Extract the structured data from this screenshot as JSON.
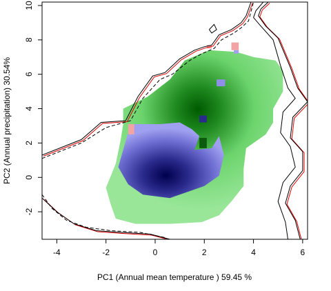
{
  "chart_data": {
    "type": "heatmap",
    "title": "",
    "xlabel": "PC1 (Annual mean temperature ) 59.45 %",
    "ylabel": "PC2 (Annual precipitation) 30.54%",
    "xlim": [
      -4.6,
      6.2
    ],
    "ylim": [
      -3.6,
      10.2
    ],
    "x_ticks": [
      -4,
      -2,
      0,
      2,
      4,
      6
    ],
    "y_ticks": [
      -2,
      0,
      2,
      4,
      6,
      8,
      10
    ],
    "grid": false,
    "legend": "none",
    "colors": {
      "green_range": "#99e699",
      "green_dense": "#005a00",
      "blue_range": "#a0a0f0",
      "blue_dense": "#00004e",
      "overlap_pink": "#f2a3a3",
      "contour_red": "#e00000",
      "contour_black": "#000000"
    },
    "series": [
      {
        "layer": "range-green",
        "polygon": [
          [
            -1.3,
            4.0
          ],
          [
            -0.3,
            4.7
          ],
          [
            0.6,
            5.7
          ],
          [
            1.2,
            6.8
          ],
          [
            2.2,
            7.4
          ],
          [
            3.3,
            7.3
          ],
          [
            4.0,
            7.0
          ],
          [
            4.9,
            6.8
          ],
          [
            5.2,
            6.2
          ],
          [
            5.2,
            5.0
          ],
          [
            4.8,
            4.0
          ],
          [
            4.8,
            3.2
          ],
          [
            4.5,
            2.5
          ],
          [
            3.7,
            1.7
          ],
          [
            3.6,
            0.5
          ],
          [
            3.6,
            -0.5
          ],
          [
            3.1,
            -1.4
          ],
          [
            2.6,
            -2.2
          ],
          [
            1.9,
            -2.6
          ],
          [
            0.6,
            -2.7
          ],
          [
            -0.8,
            -2.7
          ],
          [
            -1.6,
            -2.4
          ],
          [
            -1.8,
            -1.6
          ],
          [
            -2.0,
            -0.6
          ],
          [
            -1.6,
            0.8
          ],
          [
            -1.4,
            2.2
          ],
          [
            -1.3,
            3.1
          ]
        ]
      },
      {
        "layer": "range-blue",
        "polygon": [
          [
            -1.0,
            3.1
          ],
          [
            0.2,
            3.1
          ],
          [
            1.0,
            3.2
          ],
          [
            1.5,
            2.8
          ],
          [
            1.8,
            2.4
          ],
          [
            1.6,
            1.6
          ],
          [
            2.3,
            1.7
          ],
          [
            2.6,
            2.4
          ],
          [
            2.8,
            1.3
          ],
          [
            2.6,
            0.1
          ],
          [
            2.0,
            -0.5
          ],
          [
            1.2,
            -0.9
          ],
          [
            0.6,
            -1.2
          ],
          [
            -0.5,
            -1.0
          ],
          [
            -1.1,
            -0.4
          ],
          [
            -1.5,
            0.6
          ],
          [
            -1.3,
            1.6
          ]
        ]
      },
      {
        "layer": "contour-solid-black",
        "points": [
          [
            -4.6,
            1.3
          ],
          [
            -3.0,
            2.2
          ],
          [
            -2.2,
            3.2
          ],
          [
            -1.2,
            3.3
          ],
          [
            -0.7,
            4.7
          ],
          [
            -0.1,
            5.9
          ],
          [
            0.4,
            6.1
          ],
          [
            1.0,
            6.9
          ],
          [
            1.6,
            7.4
          ],
          [
            2.0,
            7.6
          ],
          [
            2.3,
            7.7
          ],
          [
            2.6,
            8.3
          ],
          [
            3.1,
            8.6
          ],
          [
            3.5,
            9.0
          ],
          [
            3.7,
            9.4
          ],
          [
            3.9,
            10.2
          ]
        ]
      },
      {
        "layer": "contour-dashed-black",
        "points": [
          [
            -4.6,
            1.1
          ],
          [
            -3.0,
            2.0
          ],
          [
            -2.0,
            2.9
          ],
          [
            -1.0,
            3.3
          ],
          [
            -0.5,
            4.6
          ],
          [
            0.2,
            5.7
          ],
          [
            0.7,
            6.0
          ],
          [
            1.4,
            6.8
          ],
          [
            1.9,
            7.2
          ],
          [
            2.4,
            7.5
          ],
          [
            2.7,
            8.0
          ],
          [
            3.2,
            8.4
          ],
          [
            3.5,
            8.7
          ],
          [
            3.8,
            9.1
          ],
          [
            4.0,
            10.2
          ]
        ]
      },
      {
        "layer": "contour-right-outer",
        "points": [
          [
            4.6,
            10.2
          ],
          [
            4.3,
            9.8
          ],
          [
            4.2,
            9.4
          ],
          [
            4.5,
            8.8
          ],
          [
            5.0,
            8.1
          ],
          [
            5.5,
            6.4
          ],
          [
            5.8,
            5.2
          ],
          [
            6.2,
            4.4
          ],
          [
            5.6,
            3.5
          ],
          [
            5.5,
            2.3
          ],
          [
            6.0,
            1.5
          ],
          [
            6.0,
            0.4
          ],
          [
            5.5,
            -0.5
          ],
          [
            5.3,
            -1.5
          ],
          [
            5.7,
            -2.5
          ],
          [
            5.9,
            -3.6
          ]
        ]
      },
      {
        "layer": "contour-right-inner",
        "points": [
          [
            4.4,
            10.2
          ],
          [
            4.1,
            9.7
          ],
          [
            4.0,
            9.3
          ],
          [
            4.3,
            8.8
          ],
          [
            4.8,
            8.0
          ],
          [
            5.1,
            6.5
          ],
          [
            5.4,
            5.2
          ],
          [
            5.7,
            4.6
          ],
          [
            5.2,
            3.8
          ],
          [
            5.1,
            2.6
          ],
          [
            5.5,
            1.8
          ],
          [
            5.7,
            0.6
          ],
          [
            5.2,
            -0.3
          ],
          [
            5.0,
            -1.4
          ],
          [
            5.3,
            -2.6
          ],
          [
            5.4,
            -3.6
          ]
        ]
      },
      {
        "layer": "contour-bottom-solid",
        "points": [
          [
            -4.6,
            -1.2
          ],
          [
            -4.0,
            -2.0
          ],
          [
            -3.3,
            -2.7
          ],
          [
            -2.4,
            -3.1
          ],
          [
            -1.4,
            -3.2
          ],
          [
            -0.2,
            -3.3
          ],
          [
            0.6,
            -3.6
          ]
        ]
      },
      {
        "layer": "contour-bottom-dashed",
        "points": [
          [
            -4.6,
            -1.0
          ],
          [
            -4.2,
            -1.8
          ],
          [
            -3.6,
            -2.5
          ],
          [
            -2.8,
            -2.9
          ],
          [
            -1.8,
            -3.1
          ],
          [
            -0.6,
            -3.2
          ],
          [
            0.4,
            -3.5
          ]
        ]
      },
      {
        "layer": "contour-top-small",
        "points": [
          [
            2.2,
            8.6
          ],
          [
            2.4,
            8.9
          ],
          [
            2.5,
            8.6
          ],
          [
            2.3,
            8.4
          ],
          [
            2.2,
            8.6
          ]
        ]
      }
    ]
  }
}
